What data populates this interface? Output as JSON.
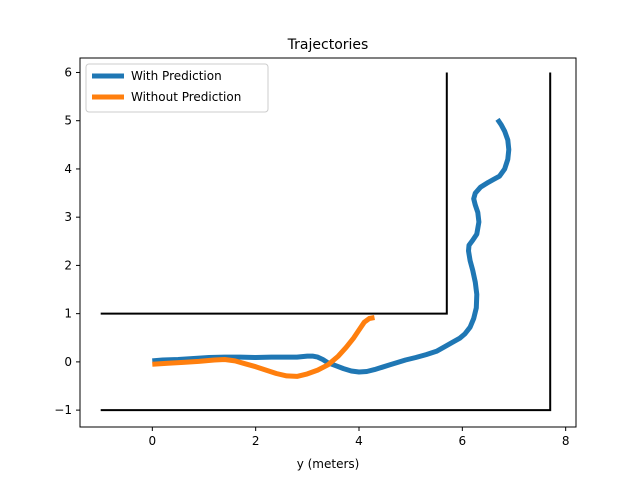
{
  "chart_data": {
    "type": "line",
    "title": "Trajectories",
    "xlabel": "y (meters)",
    "ylabel": "",
    "xlim": [
      -1.4,
      8.2
    ],
    "ylim": [
      -1.35,
      6.3
    ],
    "xticks": [
      0,
      2,
      4,
      6,
      8
    ],
    "yticks": [
      -1,
      0,
      1,
      2,
      3,
      4,
      5,
      6
    ],
    "ytick_labels": [
      "−1",
      "0",
      "1",
      "2",
      "3",
      "4",
      "5",
      "6"
    ],
    "legend_position": "upper left",
    "walls": [
      {
        "x": [
          -1.0,
          5.7,
          5.7
        ],
        "y": [
          1.0,
          1.0,
          6.0
        ]
      },
      {
        "x": [
          -1.0,
          7.7,
          7.7
        ],
        "y": [
          -1.0,
          -1.0,
          6.0
        ]
      }
    ],
    "series": [
      {
        "name": "With Prediction",
        "color": "#1f77b4",
        "x": [
          0.0,
          0.2,
          0.5,
          0.8,
          1.1,
          1.4,
          1.7,
          2.0,
          2.3,
          2.6,
          2.8,
          3.0,
          3.1,
          3.2,
          3.3,
          3.4,
          3.55,
          3.7,
          3.85,
          4.0,
          4.15,
          4.3,
          4.45,
          4.6,
          4.75,
          4.9,
          5.1,
          5.3,
          5.5,
          5.65,
          5.8,
          5.95,
          6.05,
          6.15,
          6.22,
          6.27,
          6.28,
          6.25,
          6.2,
          6.15,
          6.12,
          6.13,
          6.2,
          6.28,
          6.32,
          6.3,
          6.25,
          6.22,
          6.25,
          6.35,
          6.5,
          6.6,
          6.72,
          6.82,
          6.88,
          6.9,
          6.88,
          6.82,
          6.75,
          6.68
        ],
        "y": [
          0.02,
          0.04,
          0.05,
          0.07,
          0.09,
          0.1,
          0.1,
          0.09,
          0.1,
          0.1,
          0.1,
          0.12,
          0.12,
          0.1,
          0.05,
          -0.02,
          -0.08,
          -0.14,
          -0.19,
          -0.21,
          -0.2,
          -0.16,
          -0.11,
          -0.06,
          -0.01,
          0.04,
          0.09,
          0.15,
          0.22,
          0.31,
          0.4,
          0.49,
          0.58,
          0.72,
          0.9,
          1.12,
          1.4,
          1.65,
          1.9,
          2.1,
          2.3,
          2.42,
          2.52,
          2.65,
          2.9,
          3.1,
          3.25,
          3.38,
          3.5,
          3.62,
          3.72,
          3.78,
          3.85,
          4.0,
          4.2,
          4.4,
          4.6,
          4.78,
          4.92,
          5.03
        ]
      },
      {
        "name": "Without Prediction",
        "color": "#ff7f0e",
        "x": [
          0.0,
          0.3,
          0.6,
          0.9,
          1.2,
          1.4,
          1.6,
          1.8,
          2.0,
          2.2,
          2.4,
          2.6,
          2.8,
          3.0,
          3.2,
          3.4,
          3.6,
          3.75,
          3.9,
          4.0,
          4.1,
          4.2,
          4.3
        ],
        "y": [
          -0.05,
          -0.03,
          -0.01,
          0.01,
          0.04,
          0.05,
          0.02,
          -0.04,
          -0.1,
          -0.17,
          -0.24,
          -0.29,
          -0.3,
          -0.25,
          -0.17,
          -0.06,
          0.12,
          0.3,
          0.5,
          0.66,
          0.82,
          0.9,
          0.92
        ]
      }
    ]
  }
}
